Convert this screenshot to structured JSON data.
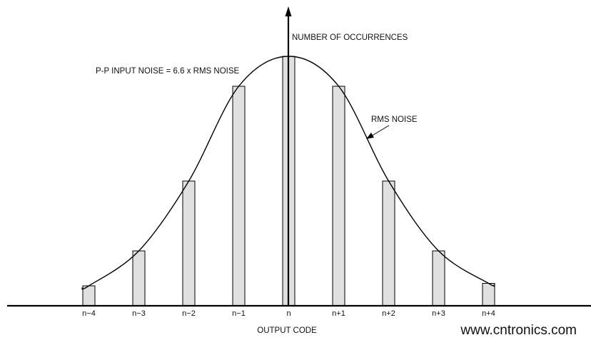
{
  "chart_data": {
    "type": "bar",
    "categories": [
      "n−4",
      "n−3",
      "n−2",
      "n−1",
      "n",
      "n+1",
      "n+2",
      "n+3",
      "n+4"
    ],
    "values": [
      8,
      22,
      50,
      88,
      100,
      88,
      50,
      22,
      9
    ],
    "ylim": [
      0,
      100
    ],
    "xlabel": "OUTPUT CODE",
    "ylabel": "NUMBER OF OCCURRENCES",
    "grid": false,
    "bar_color": "#e0e0e0",
    "curve": "gaussian envelope through bar tops",
    "annotations": {
      "pp_noise": "P-P INPUT NOISE = 6.6 x RMS NOISE",
      "rms_noise": "RMS NOISE"
    }
  },
  "watermark": {
    "text": "www.cntronics.com",
    "color": "#cfe8c4"
  }
}
